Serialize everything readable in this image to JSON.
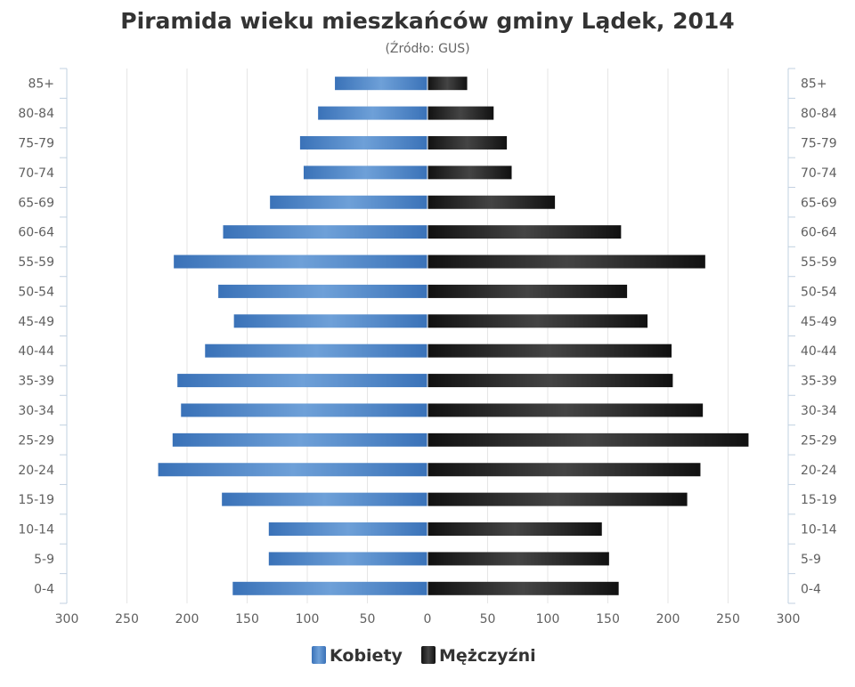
{
  "chart_data": {
    "type": "bar",
    "orientation": "horizontal",
    "title": "Piramida wieku mieszkańców gminy Lądek, 2014",
    "subtitle": "(Źródło: GUS)",
    "categories": [
      "85+",
      "80-84",
      "75-79",
      "70-74",
      "65-69",
      "60-64",
      "55-59",
      "50-54",
      "45-49",
      "40-44",
      "35-39",
      "30-34",
      "25-29",
      "20-24",
      "15-19",
      "10-14",
      "5-9",
      "0-4"
    ],
    "series": [
      {
        "name": "Kobiety",
        "color": "#3d7bc4",
        "values": [
          77,
          91,
          106,
          103,
          131,
          170,
          211,
          174,
          161,
          185,
          208,
          205,
          212,
          224,
          171,
          132,
          132,
          162
        ]
      },
      {
        "name": "Mężczyźni",
        "color": "#222222",
        "values": [
          33,
          55,
          66,
          70,
          106,
          161,
          231,
          166,
          183,
          203,
          204,
          229,
          267,
          227,
          216,
          145,
          151,
          159
        ]
      }
    ],
    "xlim": [
      -300,
      300
    ],
    "x_ticks": [
      "300",
      "250",
      "200",
      "150",
      "100",
      "50",
      "0",
      "50",
      "100",
      "150",
      "200",
      "250",
      "300"
    ],
    "legend_position": "bottom-center",
    "grid": true
  }
}
